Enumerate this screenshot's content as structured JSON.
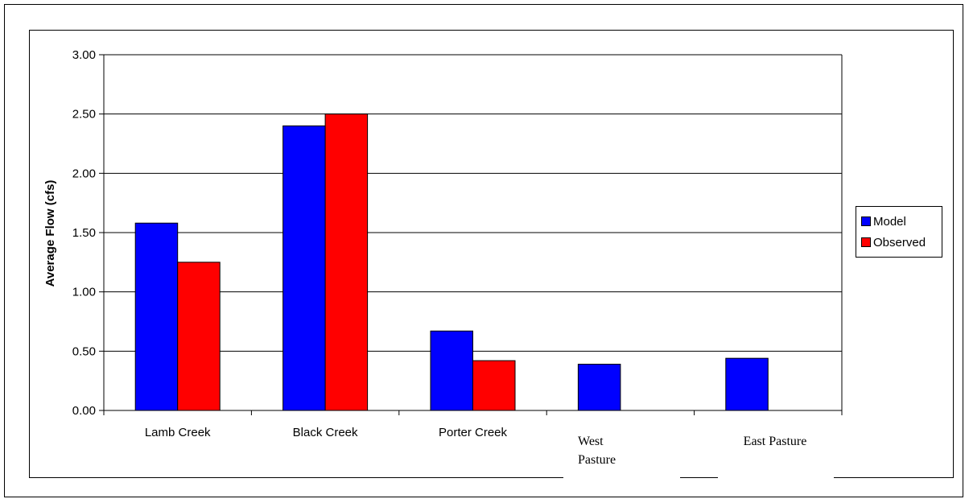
{
  "chart_data": {
    "type": "bar",
    "categories": [
      "Lamb Creek",
      "Black Creek",
      "Porter Creek",
      "West Pasture",
      "East Pasture"
    ],
    "series": [
      {
        "name": "Model",
        "values": [
          1.58,
          2.4,
          0.67,
          0.39,
          0.44
        ],
        "color": "#0000ff"
      },
      {
        "name": "Observed",
        "values": [
          1.25,
          2.5,
          0.42,
          null,
          null
        ],
        "color": "#ff0000"
      }
    ],
    "title": "",
    "xlabel": "",
    "ylabel": "Average Flow (cfs)",
    "ylim": [
      0,
      3
    ],
    "yticks": [
      "0.00",
      "0.50",
      "1.00",
      "1.50",
      "2.00",
      "2.50",
      "3.00"
    ],
    "grid": true,
    "legend_position": "right"
  }
}
